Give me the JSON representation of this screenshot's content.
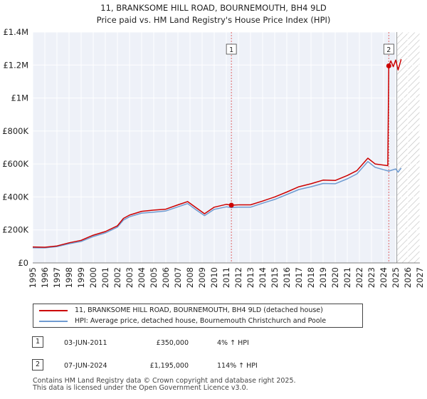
{
  "title": {
    "line1": "11, BRANKSOME HILL ROAD, BOURNEMOUTH, BH4 9LD",
    "line2": "Price paid vs. HM Land Registry's House Price Index (HPI)"
  },
  "chart_data": {
    "type": "line",
    "title": "11, BRANKSOME HILL ROAD, BOURNEMOUTH, BH4 9LD",
    "subtitle": "Price paid vs. HM Land Registry's House Price Index (HPI)",
    "xlim": [
      1995,
      2027
    ],
    "ylim": [
      0,
      1400000
    ],
    "x_ticks": [
      1995,
      1996,
      1997,
      1998,
      1999,
      2000,
      2001,
      2002,
      2003,
      2004,
      2005,
      2006,
      2007,
      2008,
      2009,
      2010,
      2011,
      2012,
      2013,
      2014,
      2015,
      2016,
      2017,
      2018,
      2019,
      2020,
      2021,
      2022,
      2023,
      2024,
      2025,
      2026,
      2027
    ],
    "y_ticks": [
      {
        "value": 0,
        "label": "£0"
      },
      {
        "value": 200000,
        "label": "£200K"
      },
      {
        "value": 400000,
        "label": "£400K"
      },
      {
        "value": 600000,
        "label": "£600K"
      },
      {
        "value": 800000,
        "label": "£800K"
      },
      {
        "value": 1000000,
        "label": "£1M"
      },
      {
        "value": 1200000,
        "label": "£1.2M"
      },
      {
        "value": 1400000,
        "label": "£1.4M"
      }
    ],
    "grid": true,
    "forecast_from": 2025.1,
    "series": [
      {
        "name": "11, BRANKSOME HILL ROAD, BOURNEMOUTH, BH4 9LD (detached house)",
        "color": "#cc0000",
        "points": [
          [
            1995.0,
            97000
          ],
          [
            1996.0,
            95000
          ],
          [
            1997.0,
            103000
          ],
          [
            1998.0,
            122000
          ],
          [
            1999.0,
            137000
          ],
          [
            2000.0,
            168000
          ],
          [
            2001.0,
            190000
          ],
          [
            2002.0,
            225000
          ],
          [
            2002.5,
            270000
          ],
          [
            2003.0,
            290000
          ],
          [
            2004.0,
            313000
          ],
          [
            2005.0,
            320000
          ],
          [
            2006.0,
            326000
          ],
          [
            2007.0,
            352000
          ],
          [
            2007.8,
            372000
          ],
          [
            2008.5,
            335000
          ],
          [
            2009.2,
            298000
          ],
          [
            2010.0,
            338000
          ],
          [
            2011.0,
            355000
          ],
          [
            2011.42,
            350000
          ],
          [
            2012.0,
            352000
          ],
          [
            2013.0,
            352000
          ],
          [
            2014.0,
            375000
          ],
          [
            2015.0,
            400000
          ],
          [
            2016.0,
            430000
          ],
          [
            2017.0,
            462000
          ],
          [
            2018.0,
            480000
          ],
          [
            2019.0,
            502000
          ],
          [
            2020.0,
            500000
          ],
          [
            2021.0,
            530000
          ],
          [
            2021.8,
            560000
          ],
          [
            2022.7,
            635000
          ],
          [
            2023.3,
            600000
          ],
          [
            2024.35,
            590000
          ],
          [
            2024.43,
            1195000
          ],
          [
            2024.6,
            1225000
          ],
          [
            2024.8,
            1190000
          ],
          [
            2025.0,
            1230000
          ],
          [
            2025.2,
            1170000
          ],
          [
            2025.45,
            1235000
          ]
        ]
      },
      {
        "name": "HPI: Average price, detached house, Bournemouth Christchurch and Poole",
        "color": "#6f9bd1",
        "points": [
          [
            1995.0,
            92000
          ],
          [
            1996.0,
            91000
          ],
          [
            1997.0,
            99000
          ],
          [
            1998.0,
            116000
          ],
          [
            1999.0,
            130000
          ],
          [
            2000.0,
            160000
          ],
          [
            2001.0,
            182000
          ],
          [
            2002.0,
            217000
          ],
          [
            2002.5,
            260000
          ],
          [
            2003.0,
            280000
          ],
          [
            2004.0,
            302000
          ],
          [
            2005.0,
            308000
          ],
          [
            2006.0,
            315000
          ],
          [
            2007.0,
            340000
          ],
          [
            2007.8,
            360000
          ],
          [
            2008.5,
            322000
          ],
          [
            2009.2,
            287000
          ],
          [
            2010.0,
            325000
          ],
          [
            2011.0,
            340000
          ],
          [
            2011.42,
            336000
          ],
          [
            2012.0,
            338000
          ],
          [
            2013.0,
            338000
          ],
          [
            2014.0,
            362000
          ],
          [
            2015.0,
            385000
          ],
          [
            2016.0,
            415000
          ],
          [
            2017.0,
            445000
          ],
          [
            2018.0,
            462000
          ],
          [
            2019.0,
            482000
          ],
          [
            2020.0,
            480000
          ],
          [
            2021.0,
            510000
          ],
          [
            2021.8,
            540000
          ],
          [
            2022.7,
            615000
          ],
          [
            2023.3,
            580000
          ],
          [
            2024.0,
            565000
          ],
          [
            2024.43,
            557000
          ],
          [
            2025.0,
            570000
          ],
          [
            2025.2,
            550000
          ],
          [
            2025.45,
            575000
          ]
        ]
      }
    ],
    "markers": [
      {
        "label": "1",
        "x": 2011.42,
        "y": 350000
      },
      {
        "label": "2",
        "x": 2024.43,
        "y": 1195000
      }
    ]
  },
  "legend": {
    "items": [
      {
        "label": "11, BRANKSOME HILL ROAD, BOURNEMOUTH, BH4 9LD (detached house)",
        "color": "#cc0000"
      },
      {
        "label": "HPI: Average price, detached house, Bournemouth Christchurch and Poole",
        "color": "#6f9bd1"
      }
    ]
  },
  "transactions": [
    {
      "num": "1",
      "date": "03-JUN-2011",
      "price": "£350,000",
      "hpi": "4% ↑ HPI"
    },
    {
      "num": "2",
      "date": "07-JUN-2024",
      "price": "£1,195,000",
      "hpi": "114% ↑ HPI"
    }
  ],
  "footer": {
    "line1": "Contains HM Land Registry data © Crown copyright and database right 2025.",
    "line2": "This data is licensed under the Open Government Licence v3.0."
  }
}
